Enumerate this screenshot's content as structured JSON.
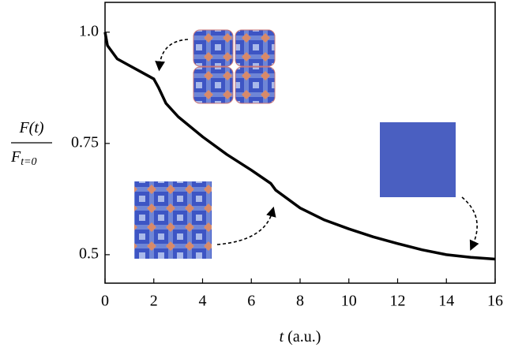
{
  "chart_data": {
    "type": "line",
    "xlabel": {
      "symbol": "t",
      "unit": "(a.u.)"
    },
    "ylabel": {
      "numerator": "F(t)",
      "denominator": "F",
      "denominator_subscript": "t=0"
    },
    "x": [
      0,
      0.1,
      0.5,
      1,
      1.5,
      2,
      2.2,
      2.5,
      3,
      4,
      5,
      6,
      6.8,
      7,
      8,
      9,
      10,
      11,
      12,
      13,
      14,
      15,
      16
    ],
    "series": [
      {
        "color": "#000000",
        "values": [
          1.0,
          0.97,
          0.94,
          0.925,
          0.91,
          0.895,
          0.875,
          0.84,
          0.81,
          0.765,
          0.725,
          0.69,
          0.66,
          0.645,
          0.605,
          0.578,
          0.558,
          0.54,
          0.525,
          0.511,
          0.5,
          0.494,
          0.49
        ]
      }
    ],
    "xlim": [
      0,
      16
    ],
    "xticks": [
      0,
      2,
      4,
      6,
      8,
      10,
      12,
      14,
      16
    ],
    "ylim": [
      0.436,
      1.067
    ],
    "yticks": [
      0.5,
      0.75,
      {
        "value": 1,
        "label": "1.0"
      }
    ]
  }
}
